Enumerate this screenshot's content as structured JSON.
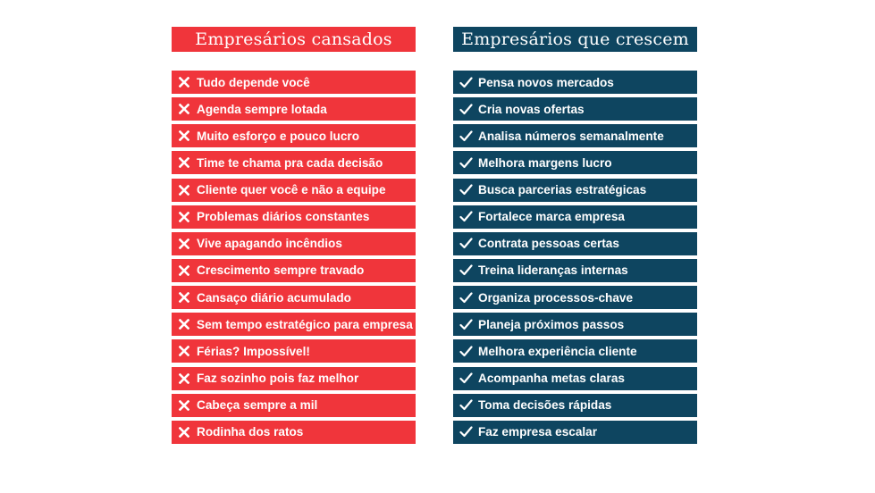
{
  "left": {
    "title": "Empresários cansados",
    "items": [
      "Tudo depende você",
      "Agenda sempre lotada",
      "Muito esforço e pouco lucro",
      "Time te chama pra cada decisão",
      "Cliente quer você e não a equipe",
      "Problemas diários constantes",
      "Vive apagando incêndios",
      "Crescimento sempre travado",
      "Cansaço diário acumulado",
      "Sem tempo estratégico para empresa",
      "Férias? Impossível!",
      "Faz sozinho pois faz melhor",
      "Cabeça sempre a mil",
      "Rodinha dos ratos"
    ],
    "icon": "x-icon",
    "color": "#f0353b"
  },
  "right": {
    "title": "Empresários que crescem",
    "items": [
      "Pensa novos mercados",
      "Cria novas ofertas",
      "Analisa números semanalmente",
      "Melhora margens lucro",
      "Busca parcerias estratégicas",
      "Fortalece marca empresa",
      "Contrata pessoas certas",
      "Treina lideranças internas",
      "Organiza processos-chave",
      "Planeja próximos passos",
      "Melhora experiência cliente",
      "Acompanha metas claras",
      "Toma decisões rápidas",
      "Faz empresa escalar"
    ],
    "icon": "check-icon",
    "color": "#0e4560"
  }
}
